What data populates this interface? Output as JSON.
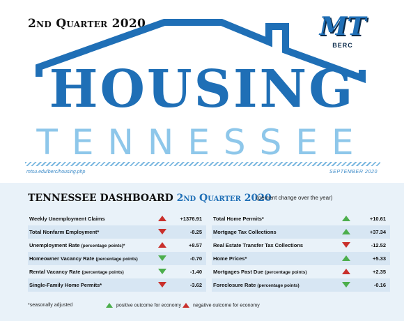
{
  "header": {
    "quarter": "2nd Quarter 2020",
    "title": "HOUSING",
    "subtitle": "TENNESSEE",
    "url": "mtsu.edu/berc/housing.php",
    "date": "SEPTEMBER 2020",
    "logo_text": "MT",
    "logo_sub": "BERC",
    "title_color": "#1f6fb6",
    "subtitle_color": "#8ec7ea"
  },
  "dashboard": {
    "title": "TENNESSEE DASHBOARD",
    "quarter": "2nd Quarter 2020",
    "note": "(percent change over the year)",
    "left": [
      {
        "label": "Weekly Unemployment Claims",
        "sub": "",
        "value": "+1376.91",
        "arrow": "up-red"
      },
      {
        "label": "Total Nonfarm Employment*",
        "sub": "",
        "value": "-8.25",
        "arrow": "down-red"
      },
      {
        "label": "Unemployment Rate",
        "sub": "(percentage points)*",
        "value": "+8.57",
        "arrow": "up-red"
      },
      {
        "label": "Homeowner Vacancy Rate",
        "sub": "(percentage points)",
        "value": "-0.70",
        "arrow": "down-green"
      },
      {
        "label": "Rental Vacancy Rate",
        "sub": "(percentage points)",
        "value": "-1.40",
        "arrow": "down-green"
      },
      {
        "label": "Single-Family Home Permits*",
        "sub": "",
        "value": "-3.62",
        "arrow": "down-red"
      }
    ],
    "right": [
      {
        "label": "Total Home Permits*",
        "sub": "",
        "value": "+10.61",
        "arrow": "up-green"
      },
      {
        "label": "Mortgage Tax Collections",
        "sub": "",
        "value": "+37.34",
        "arrow": "up-green"
      },
      {
        "label": "Real Estate Transfer Tax Collections",
        "sub": "",
        "value": "-12.52",
        "arrow": "down-red"
      },
      {
        "label": "Home Prices*",
        "sub": "",
        "value": "+5.33",
        "arrow": "up-green"
      },
      {
        "label": "Mortgages Past Due",
        "sub": "(percentage points)",
        "value": "+2.35",
        "arrow": "up-red"
      },
      {
        "label": "Foreclosure Rate",
        "sub": "(percentage points)",
        "value": "-0.16",
        "arrow": "down-green"
      }
    ]
  },
  "footer": {
    "footnote": "*seasonally adjusted",
    "legend_positive": "positive outcome for economy",
    "legend_negative": "negative outcome for economy",
    "positive_color": "#4cae4c",
    "negative_color": "#c9302c"
  }
}
